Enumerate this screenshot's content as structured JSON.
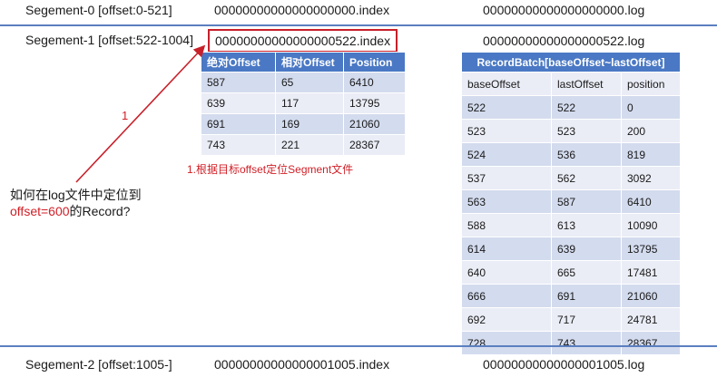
{
  "segments": [
    {
      "label": "Segement-0 [offset:0-521]",
      "index_file": "00000000000000000000.index",
      "log_file": "00000000000000000000.log"
    },
    {
      "label": "Segement-1 [offset:522-1004]",
      "index_file": "00000000000000000522.index",
      "log_file": "00000000000000000522.log"
    },
    {
      "label": "Segement-2 [offset:1005-]",
      "index_file": "00000000000000001005.index",
      "log_file": "00000000000000001005.log"
    }
  ],
  "index_table": {
    "headers": [
      "绝对Offset",
      "相对Offset",
      "Position"
    ],
    "rows": [
      [
        "587",
        "65",
        "6410"
      ],
      [
        "639",
        "117",
        "13795"
      ],
      [
        "691",
        "169",
        "21060"
      ],
      [
        "743",
        "221",
        "28367"
      ]
    ]
  },
  "record_table": {
    "title": "RecordBatch[baseOffset~lastOffset]",
    "headers": [
      "baseOffset",
      "lastOffset",
      "position"
    ],
    "rows": [
      [
        "522",
        "522",
        "0"
      ],
      [
        "523",
        "523",
        "200"
      ],
      [
        "524",
        "536",
        "819"
      ],
      [
        "537",
        "562",
        "3092"
      ],
      [
        "563",
        "587",
        "6410"
      ],
      [
        "588",
        "613",
        "10090"
      ],
      [
        "614",
        "639",
        "13795"
      ],
      [
        "640",
        "665",
        "17481"
      ],
      [
        "666",
        "691",
        "21060"
      ],
      [
        "692",
        "717",
        "24781"
      ],
      [
        "728",
        "743",
        "28367"
      ]
    ]
  },
  "annotations": {
    "arrow_label": "1",
    "step_note": "1.根据目标offset定位Segment文件",
    "question_line1": "如何在log文件中定位到",
    "question_offset": "offset=600",
    "question_suffix": "的Record?"
  },
  "colors": {
    "header_blue": "#4a78c4",
    "row_dark": "#d3dbee",
    "row_light": "#eaedf6",
    "red": "#c8202a",
    "divider": "#5b7fc0"
  }
}
